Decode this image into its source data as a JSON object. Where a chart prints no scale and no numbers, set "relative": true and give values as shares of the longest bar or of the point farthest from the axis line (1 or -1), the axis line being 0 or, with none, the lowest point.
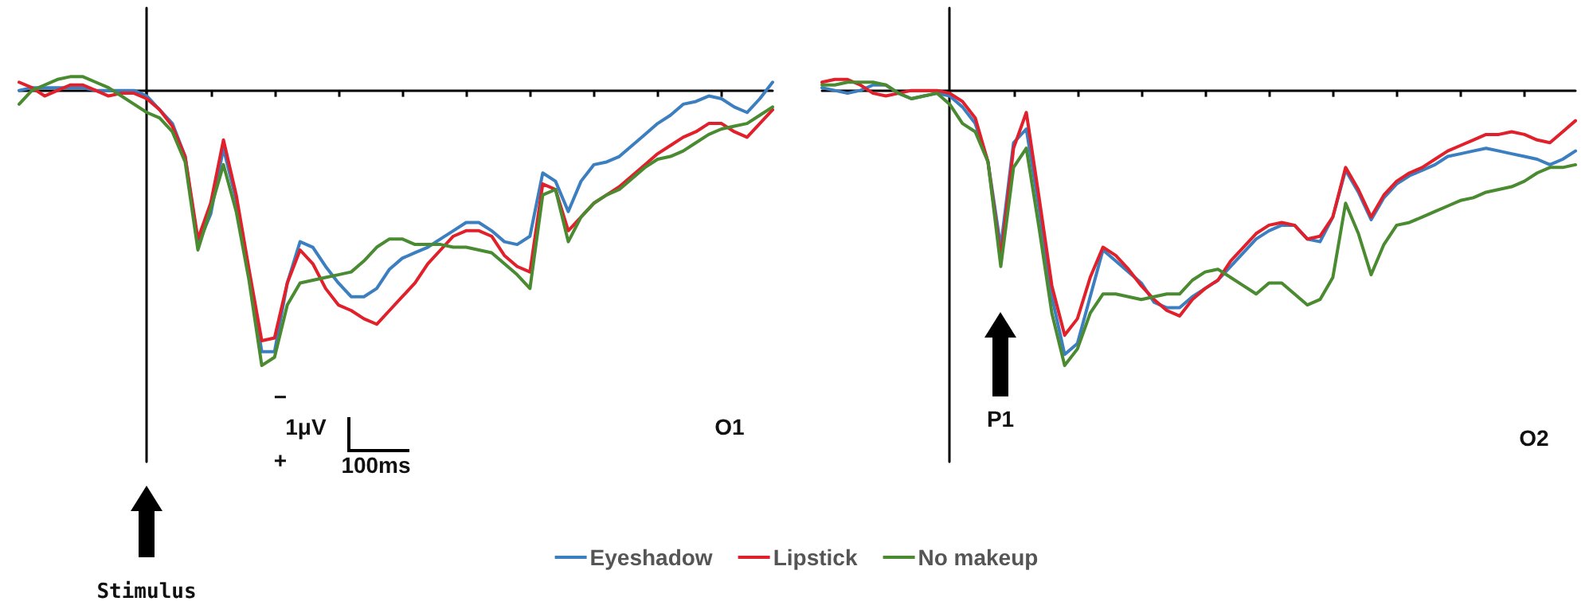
{
  "chart_data": [
    {
      "type": "line",
      "relative": true,
      "marker": "none",
      "line_style": "solid",
      "legend": "bottom",
      "categories": [
        null,
        null,
        null,
        null,
        null,
        null,
        null,
        null,
        null,
        null,
        null,
        null,
        null,
        null,
        null,
        null,
        null,
        null,
        null,
        null,
        null,
        null,
        null,
        null,
        null,
        null,
        null,
        null,
        null,
        null,
        null,
        null,
        null,
        null,
        null,
        null,
        null,
        null,
        null,
        null,
        null,
        null,
        null,
        null,
        null,
        null,
        null,
        null,
        null,
        null,
        null,
        null,
        null,
        null,
        null,
        null,
        null,
        null,
        null,
        null
      ],
      "annotations": [
        "Stimulus",
        "O1",
        "−",
        "1μV",
        "+",
        "100ms"
      ],
      "series": [
        {
          "name": "Eyeshadow",
          "color": "#3c7fc0",
          "values": [
            0,
            0.01,
            0.01,
            0.01,
            0.01,
            0.01,
            0,
            0,
            0,
            0,
            -0.02,
            -0.07,
            -0.12,
            -0.24,
            -0.56,
            -0.45,
            -0.21,
            -0.4,
            -0.66,
            -0.95,
            -0.95,
            -0.7,
            -0.55,
            -0.57,
            -0.64,
            -0.7,
            -0.75,
            -0.75,
            -0.72,
            -0.65,
            -0.61,
            -0.59,
            -0.57,
            -0.54,
            -0.51,
            -0.48,
            -0.48,
            -0.51,
            -0.55,
            -0.56,
            -0.53,
            -0.3,
            -0.33,
            -0.44,
            -0.33,
            -0.27,
            -0.26,
            -0.24,
            -0.2,
            -0.16,
            -0.12,
            -0.09,
            -0.05,
            -0.04,
            -0.02,
            -0.03,
            -0.06,
            -0.08,
            -0.03,
            0.03
          ]
        },
        {
          "name": "Lipstick",
          "color": "#e0202a",
          "values": [
            0.03,
            0.01,
            -0.02,
            0,
            0.02,
            0.02,
            0,
            -0.02,
            -0.01,
            -0.01,
            -0.03,
            -0.07,
            -0.13,
            -0.24,
            -0.54,
            -0.41,
            -0.18,
            -0.38,
            -0.65,
            -0.91,
            -0.9,
            -0.7,
            -0.58,
            -0.63,
            -0.72,
            -0.78,
            -0.8,
            -0.83,
            -0.85,
            -0.8,
            -0.75,
            -0.7,
            -0.63,
            -0.58,
            -0.53,
            -0.51,
            -0.51,
            -0.53,
            -0.6,
            -0.64,
            -0.66,
            -0.34,
            -0.36,
            -0.51,
            -0.46,
            -0.41,
            -0.38,
            -0.35,
            -0.31,
            -0.27,
            -0.23,
            -0.2,
            -0.17,
            -0.15,
            -0.12,
            -0.12,
            -0.15,
            -0.17,
            -0.12,
            -0.07
          ]
        },
        {
          "name": "No makeup",
          "color": "#4a8a30",
          "values": [
            -0.05,
            0,
            0.02,
            0.04,
            0.05,
            0.05,
            0.03,
            0.01,
            -0.02,
            -0.05,
            -0.08,
            -0.1,
            -0.15,
            -0.26,
            -0.58,
            -0.43,
            -0.27,
            -0.44,
            -0.69,
            -1,
            -0.97,
            -0.78,
            -0.7,
            -0.69,
            -0.68,
            -0.67,
            -0.66,
            -0.62,
            -0.57,
            -0.54,
            -0.54,
            -0.56,
            -0.56,
            -0.56,
            -0.57,
            -0.57,
            -0.58,
            -0.59,
            -0.63,
            -0.67,
            -0.72,
            -0.38,
            -0.36,
            -0.55,
            -0.46,
            -0.41,
            -0.38,
            -0.36,
            -0.32,
            -0.28,
            -0.25,
            -0.24,
            -0.22,
            -0.19,
            -0.16,
            -0.14,
            -0.13,
            -0.12,
            -0.09,
            -0.06
          ]
        }
      ]
    },
    {
      "type": "line",
      "relative": true,
      "marker": "none",
      "line_style": "solid",
      "categories": [
        null,
        null,
        null,
        null,
        null,
        null,
        null,
        null,
        null,
        null,
        null,
        null,
        null,
        null,
        null,
        null,
        null,
        null,
        null,
        null,
        null,
        null,
        null,
        null,
        null,
        null,
        null,
        null,
        null,
        null,
        null,
        null,
        null,
        null,
        null,
        null,
        null,
        null,
        null,
        null,
        null,
        null,
        null,
        null,
        null,
        null,
        null,
        null,
        null,
        null,
        null,
        null,
        null,
        null,
        null,
        null,
        null,
        null,
        null,
        null
      ],
      "annotations": [
        "P1",
        "O2"
      ],
      "series": [
        {
          "color": "#3c7fc0",
          "values": [
            0.01,
            0,
            -0.01,
            0,
            0.02,
            0.02,
            -0.01,
            -0.03,
            -0.02,
            -0.01,
            -0.02,
            -0.06,
            -0.12,
            -0.26,
            -0.57,
            -0.19,
            -0.14,
            -0.43,
            -0.75,
            -0.96,
            -0.92,
            -0.75,
            -0.58,
            -0.62,
            -0.66,
            -0.7,
            -0.77,
            -0.79,
            -0.79,
            -0.75,
            -0.72,
            -0.69,
            -0.64,
            -0.59,
            -0.54,
            -0.51,
            -0.49,
            -0.49,
            -0.54,
            -0.55,
            -0.46,
            -0.29,
            -0.37,
            -0.47,
            -0.39,
            -0.34,
            -0.31,
            -0.29,
            -0.27,
            -0.24,
            -0.23,
            -0.22,
            -0.21,
            -0.22,
            -0.23,
            -0.24,
            -0.25,
            -0.27,
            -0.25,
            -0.22
          ]
        },
        {
          "color": "#e0202a",
          "values": [
            0.03,
            0.04,
            0.04,
            0.02,
            -0.01,
            -0.02,
            -0.01,
            0,
            0,
            0,
            -0.01,
            -0.04,
            -0.1,
            -0.26,
            -0.61,
            -0.21,
            -0.08,
            -0.39,
            -0.71,
            -0.89,
            -0.83,
            -0.68,
            -0.57,
            -0.6,
            -0.65,
            -0.71,
            -0.76,
            -0.8,
            -0.82,
            -0.76,
            -0.72,
            -0.69,
            -0.62,
            -0.57,
            -0.52,
            -0.49,
            -0.48,
            -0.49,
            -0.54,
            -0.53,
            -0.46,
            -0.28,
            -0.36,
            -0.46,
            -0.38,
            -0.33,
            -0.3,
            -0.28,
            -0.25,
            -0.22,
            -0.2,
            -0.18,
            -0.16,
            -0.16,
            -0.15,
            -0.16,
            -0.18,
            -0.19,
            -0.15,
            -0.11
          ]
        },
        {
          "color": "#4a8a30",
          "values": [
            0.02,
            0.02,
            0.03,
            0.03,
            0.03,
            0.02,
            -0.01,
            -0.03,
            -0.02,
            -0.01,
            -0.05,
            -0.12,
            -0.15,
            -0.26,
            -0.64,
            -0.28,
            -0.21,
            -0.5,
            -0.81,
            -1,
            -0.94,
            -0.81,
            -0.74,
            -0.74,
            -0.75,
            -0.76,
            -0.75,
            -0.74,
            -0.74,
            -0.69,
            -0.66,
            -0.65,
            -0.68,
            -0.71,
            -0.74,
            -0.7,
            -0.7,
            -0.74,
            -0.78,
            -0.76,
            -0.68,
            -0.41,
            -0.52,
            -0.67,
            -0.56,
            -0.49,
            -0.48,
            -0.46,
            -0.44,
            -0.42,
            -0.4,
            -0.39,
            -0.37,
            -0.36,
            -0.35,
            -0.33,
            -0.3,
            -0.28,
            -0.28,
            -0.27
          ]
        }
      ]
    }
  ]
}
